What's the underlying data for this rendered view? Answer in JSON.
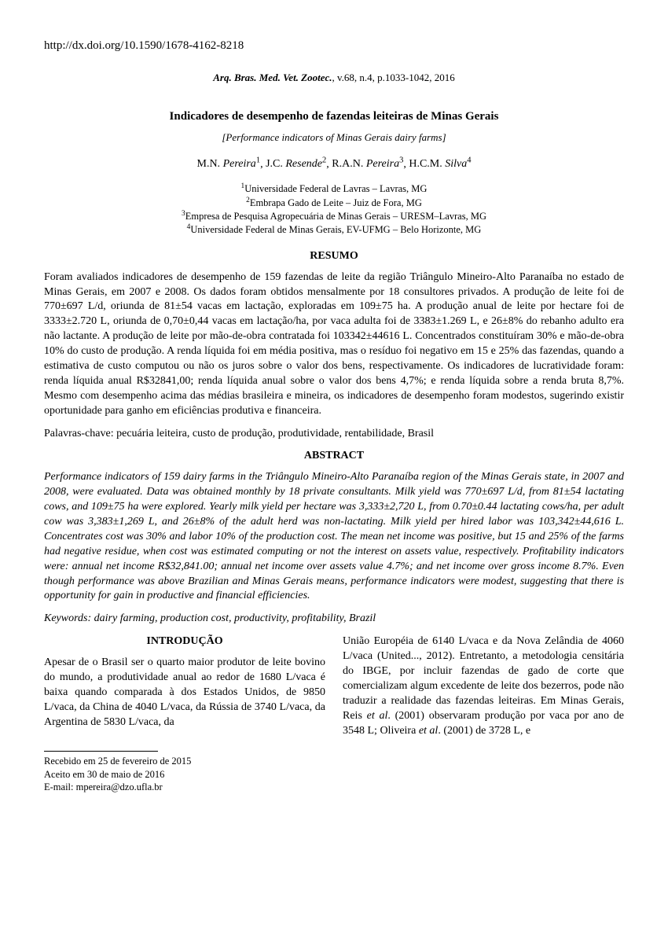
{
  "doi": "http://dx.doi.org/10.1590/1678-4162-8218",
  "journal": {
    "name": "Arq. Bras. Med. Vet. Zootec.",
    "citation": ", v.68, n.4, p.1033-1042, 2016"
  },
  "title": "Indicadores de desempenho de fazendas leiteiras de Minas Gerais",
  "subtitle": "[Performance indicators of Minas Gerais dairy farms]",
  "authors": {
    "a1_initials": "M.N. ",
    "a1_surname": "Pereira",
    "a1_sup": "1",
    "a2_initials": "J.C. ",
    "a2_surname": "Resende",
    "a2_sup": "2",
    "a3_initials": "R.A.N. ",
    "a3_surname": "Pereira",
    "a3_sup": "3",
    "a4_initials": "H.C.M. ",
    "a4_surname": "Silva",
    "a4_sup": "4"
  },
  "affiliations": {
    "l1": "Universidade Federal de Lavras – Lavras, MG",
    "l2": "Embrapa Gado de Leite – Juiz de Fora, MG",
    "l3": "Empresa de Pesquisa Agropecuária de Minas Gerais – URESM–Lavras, MG",
    "l4": "Universidade Federal de Minas Gerais, EV-UFMG – Belo Horizonte, MG"
  },
  "headings": {
    "resumo": "RESUMO",
    "abstract": "ABSTRACT",
    "introducao": "INTRODUÇÃO"
  },
  "resumo": "Foram avaliados indicadores de desempenho de 159 fazendas de leite da região Triângulo Mineiro-Alto Paranaíba no estado de Minas Gerais, em 2007 e 2008. Os dados foram obtidos mensalmente por 18 consultores privados. A produção de leite foi de 770±697 L/d, oriunda de 81±54 vacas em lactação, exploradas em 109±75 ha. A produção anual de leite por hectare foi de 3333±2.720 L, oriunda de 0,70±0,44 vacas em lactação/ha, por vaca adulta foi de 3383±1.269 L, e 26±8% do rebanho adulto era não lactante. A produção de leite por mão-de-obra contratada foi 103342±44616 L. Concentrados constituíram 30% e mão-de-obra 10% do custo de produção. A renda líquida foi em média positiva, mas o resíduo foi negativo em 15 e 25% das fazendas, quando a estimativa de custo computou ou não os juros sobre o valor dos bens, respectivamente. Os indicadores de lucratividade foram: renda líquida anual R$32841,00; renda líquida anual sobre o valor dos bens 4,7%; e renda líquida sobre a renda bruta 8,7%. Mesmo com desempenho acima das médias brasileira e mineira, os indicadores de desempenho foram modestos, sugerindo existir oportunidade para ganho em eficiências produtiva e financeira.",
  "keywords_pt": "Palavras-chave: pecuária leiteira, custo de produção, produtividade, rentabilidade, Brasil",
  "abstract": "Performance indicators of 159 dairy farms in the Triângulo Mineiro-Alto Paranaíba region of the Minas Gerais state, in 2007 and 2008, were evaluated. Data was obtained monthly by 18 private consultants. Milk yield was 770±697 L/d, from 81±54 lactating cows, and 109±75 ha were explored. Yearly milk yield per hectare was 3,333±2,720 L, from 0.70±0.44 lactating cows/ha, per adult cow was 3,383±1,269 L, and 26±8% of the adult herd was non-lactating. Milk yield per hired labor was 103,342±44,616 L. Concentrates cost was 30% and labor 10% of the production cost. The mean net income was positive, but 15 and 25% of the farms had negative residue, when cost was estimated computing or not the interest on assets value, respectively. Profitability indicators were: annual net income R$32,841.00; annual net income over assets value 4.7%; and net income over gross income 8.7%. Even though performance was above Brazilian and Minas Gerais means, performance indicators were modest, suggesting that there is opportunity for gain in productive and financial efficiencies.",
  "keywords_en": "Keywords: dairy farming, production cost, productivity, profitability, Brazil",
  "intro": {
    "col1": "Apesar de o Brasil ser o quarto maior produtor de leite bovino do mundo, a produtividade anual ao redor de 1680 L/vaca é baixa quando comparada à dos Estados Unidos, de 9850 L/vaca, da China de 4040 L/vaca, da Rússia de 3740 L/vaca, da Argentina de 5830 L/vaca, da",
    "col2_a": "União Européia de 6140 L/vaca e da Nova Zelândia de 4060 L/vaca (United..., 2012). Entretanto, a metodologia censitária do IBGE, por incluir fazendas de gado de corte que comercializam algum excedente de leite dos bezerros, pode não traduzir a realidade das fazendas leiteiras. Em Minas Gerais, Reis ",
    "col2_b": ". (2001) observaram produção por vaca por ano de 3548 L; Oliveira ",
    "col2_c": ". (2001) de 3728 L, e"
  },
  "footnotes": {
    "l1": "Recebido em 25 de fevereiro de 2015",
    "l2": "Aceito em 30 de maio de 2016",
    "l3": "E-mail: mpereira@dzo.ufla.br"
  }
}
